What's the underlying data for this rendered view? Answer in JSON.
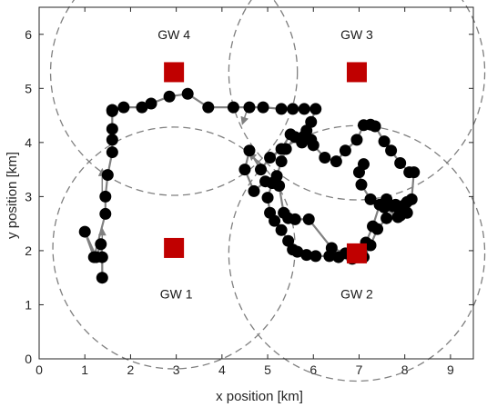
{
  "chart_data": {
    "type": "scatter",
    "title": "",
    "xlabel": "x position [km]",
    "ylabel": "y position [km]",
    "xlim": [
      0,
      9.5
    ],
    "ylim": [
      0,
      6.5
    ],
    "xticks": [
      0,
      1,
      2,
      3,
      4,
      5,
      6,
      7,
      8,
      9
    ],
    "yticks": [
      0,
      1,
      2,
      3,
      4,
      5,
      6
    ],
    "grid": false,
    "colors": {
      "path_line": "#808080",
      "marker": "#000000",
      "gateway": "#c00000",
      "coverage_circle": "#7f7f7f",
      "axis": "#262626"
    },
    "gateways": [
      {
        "label": "GW 1",
        "x": 2.95,
        "y": 2.05,
        "coverage_radius": 2.65,
        "label_x": 3.0,
        "label_y": 1.2
      },
      {
        "label": "GW 2",
        "x": 6.95,
        "y": 1.95,
        "coverage_radius": 2.8,
        "label_x": 6.95,
        "label_y": 1.2
      },
      {
        "label": "GW 3",
        "x": 6.95,
        "y": 5.3,
        "coverage_radius": 2.8,
        "label_x": 6.95,
        "label_y": 6.0
      },
      {
        "label": "GW 4",
        "x": 2.95,
        "y": 5.3,
        "coverage_radius": 2.7,
        "label_x": 2.95,
        "label_y": 6.0
      }
    ],
    "trajectory": {
      "x": [
        1.38,
        1.38,
        1.35,
        1.25,
        1.0,
        1.2,
        1.45,
        1.45,
        1.5,
        1.6,
        1.6,
        1.6,
        1.6,
        1.6,
        1.6,
        1.85,
        2.25,
        2.45,
        2.85,
        3.25,
        3.7,
        4.25,
        4.6,
        4.9,
        5.3,
        5.55,
        5.8,
        6.05,
        5.95,
        5.85,
        5.75,
        5.5,
        5.3,
        5.05,
        4.85,
        4.6,
        4.5,
        4.7,
        4.95,
        5.1,
        5.25,
        5.35,
        5.45,
        5.6,
        5.9,
        6.4,
        6.7,
        6.95,
        7.0,
        7.05,
        6.9,
        6.85,
        7.15,
        7.3,
        7.45,
        7.6,
        7.75,
        7.8,
        7.9,
        8.0,
        8.15,
        8.2,
        8.1,
        7.9,
        7.7,
        7.55,
        7.35,
        7.25,
        7.1,
        6.95,
        6.7,
        6.5,
        6.25,
        6.0,
        5.95,
        5.8,
        5.6,
        5.4,
        5.3,
        5.2,
        5.1,
        5.0,
        5.05,
        5.15,
        5.3,
        5.45,
        5.55,
        5.65,
        5.85,
        6.05,
        6.35,
        6.55,
        6.85,
        7.1,
        7.25,
        7.4,
        7.6,
        7.9,
        8.05,
        8.05,
        7.85,
        7.55,
        7.25,
        7.05,
        7.0,
        7.1
      ],
      "y": [
        1.5,
        1.88,
        2.12,
        1.88,
        2.35,
        1.88,
        2.68,
        3.0,
        3.4,
        3.82,
        4.05,
        4.25,
        4.58,
        4.6,
        4.6,
        4.65,
        4.65,
        4.72,
        4.85,
        4.9,
        4.65,
        4.65,
        4.65,
        4.65,
        4.62,
        4.62,
        4.62,
        4.62,
        4.38,
        4.22,
        4.0,
        4.15,
        3.88,
        3.72,
        3.5,
        3.85,
        3.5,
        3.1,
        3.28,
        3.25,
        3.2,
        2.7,
        2.6,
        2.58,
        2.58,
        2.05,
        1.95,
        1.88,
        1.88,
        1.95,
        1.88,
        1.92,
        2.15,
        2.45,
        2.85,
        2.95,
        2.82,
        2.85,
        2.65,
        2.85,
        2.95,
        3.45,
        3.45,
        3.62,
        3.85,
        4.02,
        4.3,
        4.33,
        4.32,
        4.05,
        3.85,
        3.65,
        3.72,
        3.95,
        4.05,
        4.12,
        4.1,
        3.88,
        3.65,
        3.38,
        3.25,
        2.98,
        2.7,
        2.55,
        2.38,
        2.18,
        2.02,
        1.98,
        1.92,
        1.9,
        1.9,
        1.88,
        1.85,
        1.88,
        2.1,
        2.4,
        2.6,
        2.72,
        2.9,
        2.7,
        2.62,
        2.8,
        2.95,
        3.22,
        3.45,
        3.6
      ]
    },
    "direction_arrows": [
      {
        "from": [
          1.38,
          1.5
        ],
        "to": [
          1.38,
          2.4
        ]
      },
      {
        "from": [
          1.38,
          3.0
        ],
        "to": [
          1.38,
          3.5
        ]
      },
      {
        "from": [
          4.55,
          4.6
        ],
        "to": [
          4.45,
          4.35
        ]
      },
      {
        "from": [
          4.85,
          3.6
        ],
        "to": [
          4.6,
          3.8
        ]
      }
    ]
  }
}
